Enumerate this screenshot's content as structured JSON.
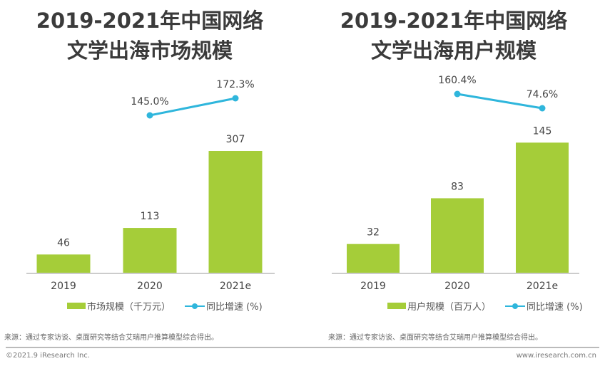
{
  "charts_meta": {
    "bar_color": "#a5cd39",
    "line_color": "#2fb6dc"
  },
  "chart_data": [
    {
      "type": "bar+line",
      "title": "2019-2021年中国网络文学出海市场规模",
      "title_line1": "2019-2021年中国网络",
      "title_line2": "文学出海市场规模",
      "categories": [
        "2019",
        "2020",
        "2021e"
      ],
      "series": [
        {
          "name": "市场规模（千万元）",
          "type": "bar",
          "values": [
            46,
            113,
            307
          ],
          "labels": [
            "46",
            "113",
            "307"
          ]
        },
        {
          "name": "同比增速 (%)",
          "type": "line",
          "values": [
            null,
            145.0,
            172.3
          ],
          "labels": [
            "",
            "145.0%",
            "172.3%"
          ]
        }
      ],
      "source": "来源：通过专家访谈、桌面研究等结合艾瑞用户推算模型综合得出。"
    },
    {
      "type": "bar+line",
      "title": "2019-2021年中国网络文学出海用户规模",
      "title_line1": "2019-2021年中国网络",
      "title_line2": "文学出海用户规模",
      "categories": [
        "2019",
        "2020",
        "2021e"
      ],
      "series": [
        {
          "name": "用户规模（百万人）",
          "type": "bar",
          "values": [
            32,
            83,
            145
          ],
          "labels": [
            "32",
            "83",
            "145"
          ]
        },
        {
          "name": "同比增速 (%)",
          "type": "line",
          "values": [
            null,
            160.4,
            74.6
          ],
          "labels": [
            "",
            "160.4%",
            "74.6%"
          ]
        }
      ],
      "source": "来源：通过专家访谈、桌面研究等结合艾瑞用户推算模型综合得出。"
    }
  ],
  "footer": {
    "copyright": "©2021.9 iResearch Inc.",
    "website": "www.iresearch.com.cn"
  }
}
